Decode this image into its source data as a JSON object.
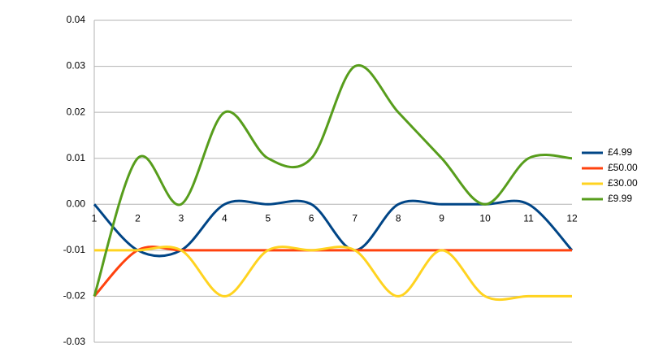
{
  "chart_data": {
    "type": "line",
    "categories": [
      "1",
      "2",
      "3",
      "4",
      "5",
      "6",
      "7",
      "8",
      "9",
      "10",
      "11",
      "12"
    ],
    "series": [
      {
        "name": "£4.99",
        "color": "#004586",
        "values": [
          0,
          -0.01,
          -0.01,
          0,
          0,
          0,
          -0.01,
          0,
          0,
          0,
          0,
          -0.01
        ]
      },
      {
        "name": "£50.00",
        "color": "#ff420e",
        "values": [
          -0.02,
          -0.01,
          -0.01,
          -0.01,
          -0.01,
          -0.01,
          -0.01,
          -0.01,
          -0.01,
          -0.01,
          -0.01,
          -0.01
        ]
      },
      {
        "name": "£30.00",
        "color": "#ffd320",
        "values": [
          -0.01,
          -0.01,
          -0.01,
          -0.02,
          -0.01,
          -0.01,
          -0.01,
          -0.02,
          -0.01,
          -0.02,
          -0.02,
          -0.02
        ]
      },
      {
        "name": "£9.99",
        "color": "#579d1c",
        "values": [
          -0.02,
          0.01,
          0,
          0.02,
          0.01,
          0.01,
          0.03,
          0.02,
          0.01,
          0,
          0.01,
          0.01
        ]
      }
    ],
    "ylim": [
      -0.03,
      0.04
    ],
    "yticks": [
      0.04,
      0.03,
      0.02,
      0.01,
      {
        "value": 0,
        "label": "0.00"
      },
      -0.01,
      -0.02,
      -0.03
    ],
    "grid": true,
    "smooth": true,
    "legend": "right"
  }
}
